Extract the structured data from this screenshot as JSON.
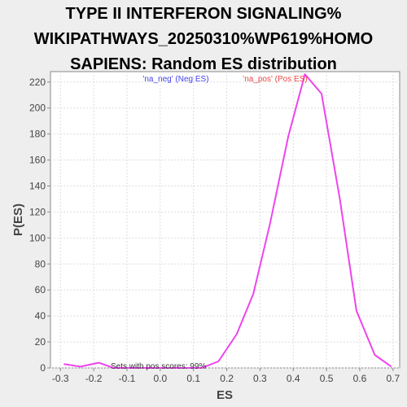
{
  "title_lines": [
    "TYPE II INTERFERON SIGNALING%",
    "WIKIPATHWAYS_20250310%WP619%HOMO",
    "SAPIENS: Random ES distribution"
  ],
  "chart_data": {
    "type": "line",
    "title": "TYPE II INTERFERON SIGNALING% WIKIPATHWAYS_20250310%WP619%HOMO SAPIENS: Random ES distribution",
    "xlabel": "ES",
    "ylabel": "P(ES)",
    "xlim": [
      -0.33,
      0.72
    ],
    "ylim": [
      0,
      228
    ],
    "x_ticks": [
      "-0.3",
      "-0.2",
      "-0.1",
      "0.0",
      "0.1",
      "0.2",
      "0.3",
      "0.4",
      "0.5",
      "0.6",
      "0.7"
    ],
    "y_ticks": [
      "0",
      "20",
      "40",
      "60",
      "80",
      "100",
      "120",
      "140",
      "160",
      "180",
      "200",
      "220"
    ],
    "grid": true,
    "series": [
      {
        "color": "#ee44ee",
        "points": [
          [
            -0.29,
            3
          ],
          [
            -0.24,
            1
          ],
          [
            -0.185,
            4
          ],
          [
            -0.14,
            0
          ],
          [
            -0.08,
            0
          ],
          [
            -0.03,
            0
          ],
          [
            0.02,
            0
          ],
          [
            0.075,
            0
          ],
          [
            0.125,
            0
          ],
          [
            0.175,
            5
          ],
          [
            0.23,
            26
          ],
          [
            0.28,
            57
          ],
          [
            0.33,
            111
          ],
          [
            0.385,
            178
          ],
          [
            0.435,
            226
          ],
          [
            0.485,
            211
          ],
          [
            0.54,
            130
          ],
          [
            0.59,
            44
          ],
          [
            0.645,
            10
          ],
          [
            0.695,
            1
          ]
        ]
      }
    ],
    "annotations": {
      "neg_label": "'na_neg' (Neg ES)",
      "pos_label": "'na_pos' (Pos ES)",
      "sets_text": "Sets with pos scores: 99%"
    },
    "colors": {
      "neg": "#4444ee",
      "pos": "#ee4444",
      "line": "#ee44ee"
    }
  }
}
